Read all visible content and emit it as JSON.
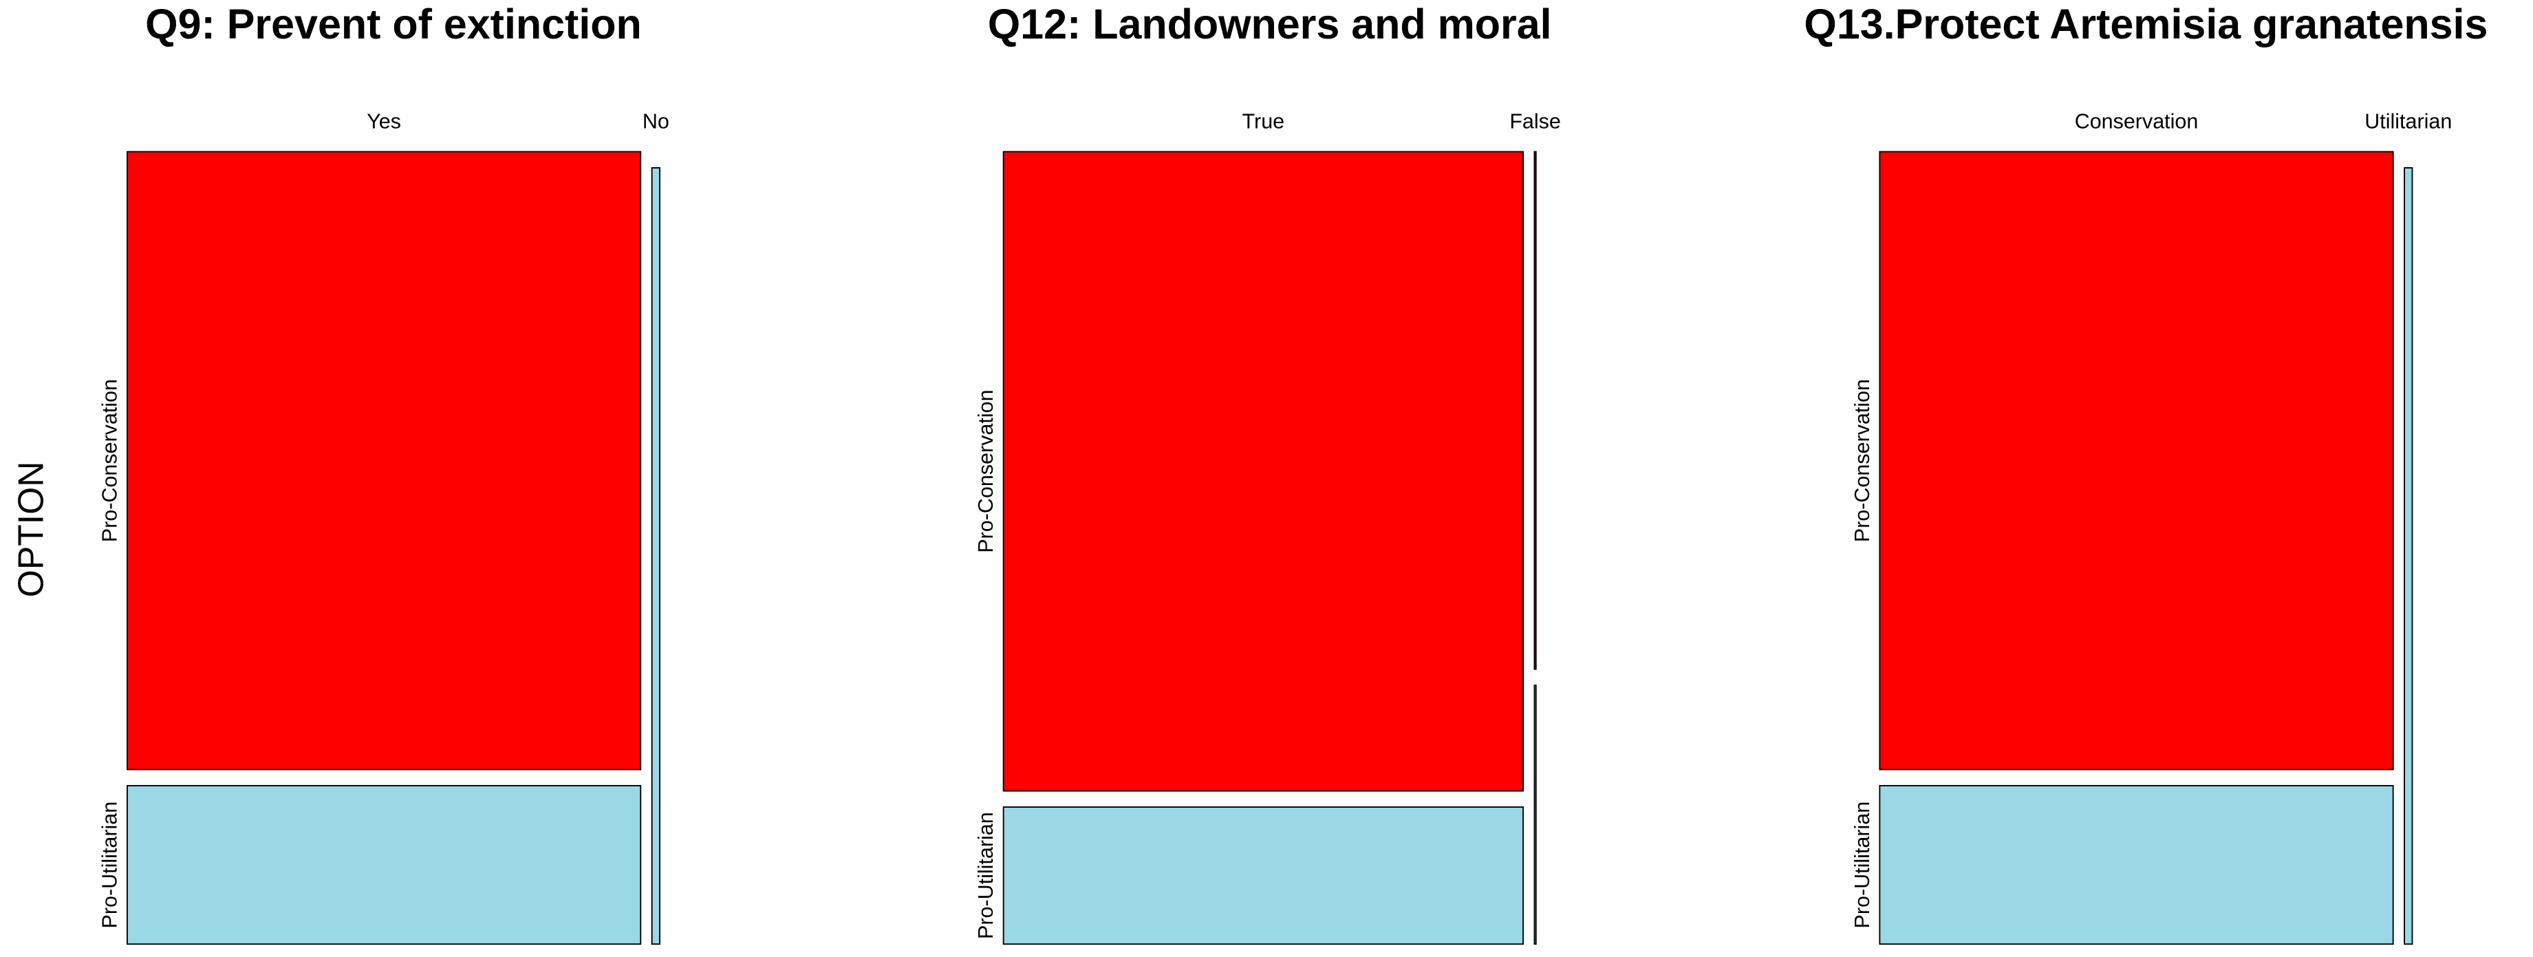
{
  "chart_data": [
    {
      "type": "mosaic",
      "title": "Q9: Prevent of extinction",
      "ylabel": "OPTION",
      "categories": [
        "Yes",
        "No"
      ],
      "series": [
        {
          "name": "Pro-Conservation",
          "color": "#ff0000",
          "values": [
            78.4,
            0
          ]
        },
        {
          "name": "Pro-Utilitarian",
          "color": "#9ad8e6",
          "values": [
            20.1,
            1.5
          ]
        }
      ]
    },
    {
      "type": "mosaic",
      "title": "Q12: Landowners and moral",
      "categories": [
        "True",
        "False"
      ],
      "series": [
        {
          "name": "Pro-Conservation",
          "color": "#ff0000",
          "values": [
            82.1,
            0.2
          ]
        },
        {
          "name": "Pro-Utilitarian",
          "color": "#9ad8e6",
          "values": [
            17.6,
            0.1
          ]
        }
      ]
    },
    {
      "type": "mosaic",
      "title": "Q13.Protect Artemisia granatensis",
      "categories": [
        "Conservation",
        "Utilitarian"
      ],
      "series": [
        {
          "name": "Pro-Conservation",
          "color": "#ff0000",
          "values": [
            78.4,
            0
          ]
        },
        {
          "name": "Pro-Utilitarian",
          "color": "#9ad8e6",
          "values": [
            20.1,
            1.5
          ]
        }
      ]
    }
  ]
}
